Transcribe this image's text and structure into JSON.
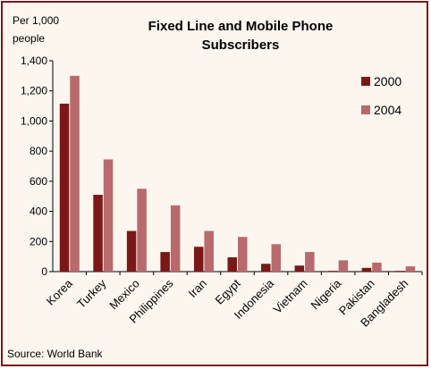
{
  "chart_data": {
    "type": "bar",
    "title_lines": [
      "Fixed Line and Mobile Phone",
      "Subscribers"
    ],
    "ylabel_lines": [
      "Per 1,000",
      "people"
    ],
    "source": "Source: World Bank",
    "categories": [
      "Korea",
      "Turkey",
      "Mexico",
      "Philippines",
      "Iran",
      "Egypt",
      "Indonesia",
      "Vietnam",
      "Nigeria",
      "Pakistan",
      "Bangladesh"
    ],
    "series": [
      {
        "name": "2000",
        "color": "#7a1818",
        "values": [
          1115,
          510,
          270,
          130,
          165,
          95,
          52,
          40,
          5,
          25,
          5
        ]
      },
      {
        "name": "2004",
        "color": "#b86a6d",
        "values": [
          1300,
          745,
          550,
          440,
          270,
          230,
          182,
          130,
          75,
          60,
          35
        ]
      }
    ],
    "ylim": [
      0,
      1400
    ],
    "yticks": [
      0,
      200,
      400,
      600,
      800,
      1000,
      1200,
      1400
    ],
    "ytick_labels": [
      "0",
      "200",
      "400",
      "600",
      "800",
      "1,000",
      "1,200",
      "1,400"
    ],
    "legend_position": "top-right",
    "grid": false
  }
}
